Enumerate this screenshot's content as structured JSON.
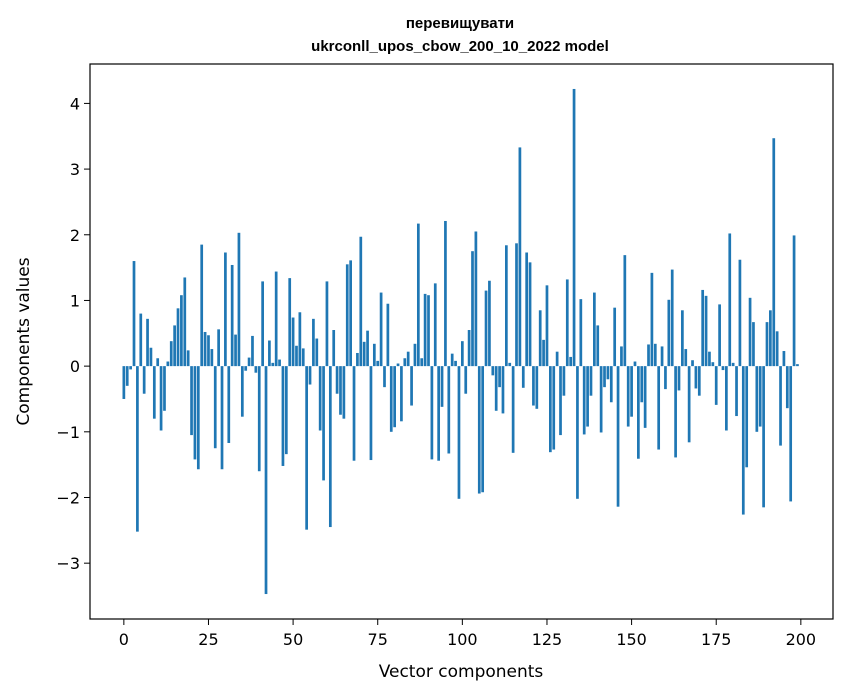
{
  "chart_data": {
    "type": "bar",
    "title_line1": "перевищувати",
    "title_line2": "ukrconll_upos_cbow_200_10_2022 model",
    "xlabel": "Vector components",
    "ylabel": "Components values",
    "xlim": [
      -10,
      209.5
    ],
    "ylim": [
      -3.85,
      4.6
    ],
    "xticks": [
      0,
      25,
      50,
      75,
      100,
      125,
      150,
      175,
      200
    ],
    "yticks": [
      -3,
      -2,
      -1,
      0,
      1,
      2,
      3,
      4
    ],
    "bar_color": "#1f77b4",
    "values": [
      -0.5,
      -0.3,
      -0.05,
      1.6,
      -2.52,
      0.8,
      -0.42,
      0.72,
      0.28,
      -0.8,
      0.12,
      -0.98,
      -0.68,
      0.07,
      0.38,
      0.62,
      0.88,
      1.08,
      1.35,
      0.24,
      -1.05,
      -1.42,
      -1.57,
      1.85,
      0.52,
      0.47,
      0.26,
      -1.25,
      0.56,
      -1.57,
      1.73,
      -1.17,
      1.54,
      0.48,
      2.03,
      -0.77,
      -0.07,
      0.13,
      0.46,
      -0.1,
      -1.6,
      1.29,
      -3.47,
      0.39,
      0.05,
      1.44,
      0.1,
      -1.52,
      -1.34,
      1.34,
      0.74,
      0.31,
      0.82,
      0.27,
      -2.49,
      -0.28,
      0.72,
      0.42,
      -0.98,
      -1.74,
      1.29,
      -2.45,
      0.55,
      -0.42,
      -0.74,
      -0.8,
      1.55,
      1.61,
      -1.44,
      0.2,
      1.97,
      0.37,
      0.54,
      -1.43,
      0.34,
      0.08,
      1.12,
      -0.32,
      0.95,
      -1.0,
      -0.93,
      0.04,
      -0.84,
      0.12,
      0.22,
      -0.6,
      0.34,
      2.17,
      0.12,
      1.1,
      1.08,
      -1.42,
      1.26,
      -1.44,
      -0.62,
      2.21,
      -1.33,
      0.19,
      0.08,
      -2.02,
      0.38,
      -0.42,
      0.55,
      1.75,
      2.05,
      -1.94,
      -1.92,
      1.15,
      1.3,
      -0.14,
      -0.68,
      -0.32,
      -0.72,
      1.84,
      0.05,
      -1.32,
      1.87,
      3.33,
      -0.33,
      1.73,
      1.58,
      -0.6,
      -0.65,
      0.85,
      0.4,
      1.23,
      -1.31,
      -1.27,
      0.22,
      -1.05,
      -0.45,
      1.32,
      0.14,
      4.22,
      -2.02,
      1.02,
      -1.04,
      -0.92,
      -0.45,
      1.12,
      0.62,
      -1.01,
      -0.32,
      -0.2,
      -0.55,
      0.89,
      -2.14,
      0.3,
      1.69,
      -0.92,
      -0.77,
      0.07,
      -1.41,
      -0.55,
      -0.94,
      0.33,
      1.42,
      0.34,
      -1.27,
      0.3,
      -0.35,
      1.01,
      1.47,
      -1.39,
      -0.37,
      0.85,
      0.26,
      -1.16,
      0.09,
      -0.34,
      -0.45,
      1.16,
      1.07,
      0.22,
      0.06,
      -0.59,
      0.94,
      -0.06,
      -0.98,
      2.02,
      0.05,
      -0.76,
      1.62,
      -2.26,
      -1.54,
      1.04,
      0.67,
      -1.0,
      -0.92,
      -2.15,
      0.67,
      0.85,
      3.47,
      0.53,
      -1.21,
      0.23,
      -0.64,
      -2.06,
      1.99,
      0.03
    ]
  }
}
